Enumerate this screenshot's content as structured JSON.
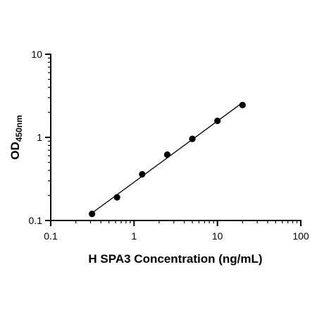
{
  "chart_data": {
    "type": "scatter",
    "title": "",
    "xlabel": "H SPA3 Concentration (ng/mL)",
    "ylabel_main": "OD",
    "ylabel_sub": "450nm",
    "x_scale": "log",
    "y_scale": "log",
    "xlim": [
      0.1,
      100
    ],
    "ylim": [
      0.1,
      10
    ],
    "x_ticks": [
      "0.1",
      "1",
      "10",
      "100"
    ],
    "y_ticks": [
      "0.1",
      "1",
      "10"
    ],
    "grid": false,
    "legend": "none",
    "points": {
      "x": [
        0.313,
        0.625,
        1.25,
        2.5,
        5,
        10,
        20
      ],
      "y": [
        0.12,
        0.19,
        0.36,
        0.62,
        0.96,
        1.58,
        2.45
      ]
    },
    "fit_line": true,
    "colors": {
      "points": "#000000",
      "line": "#000000"
    }
  }
}
